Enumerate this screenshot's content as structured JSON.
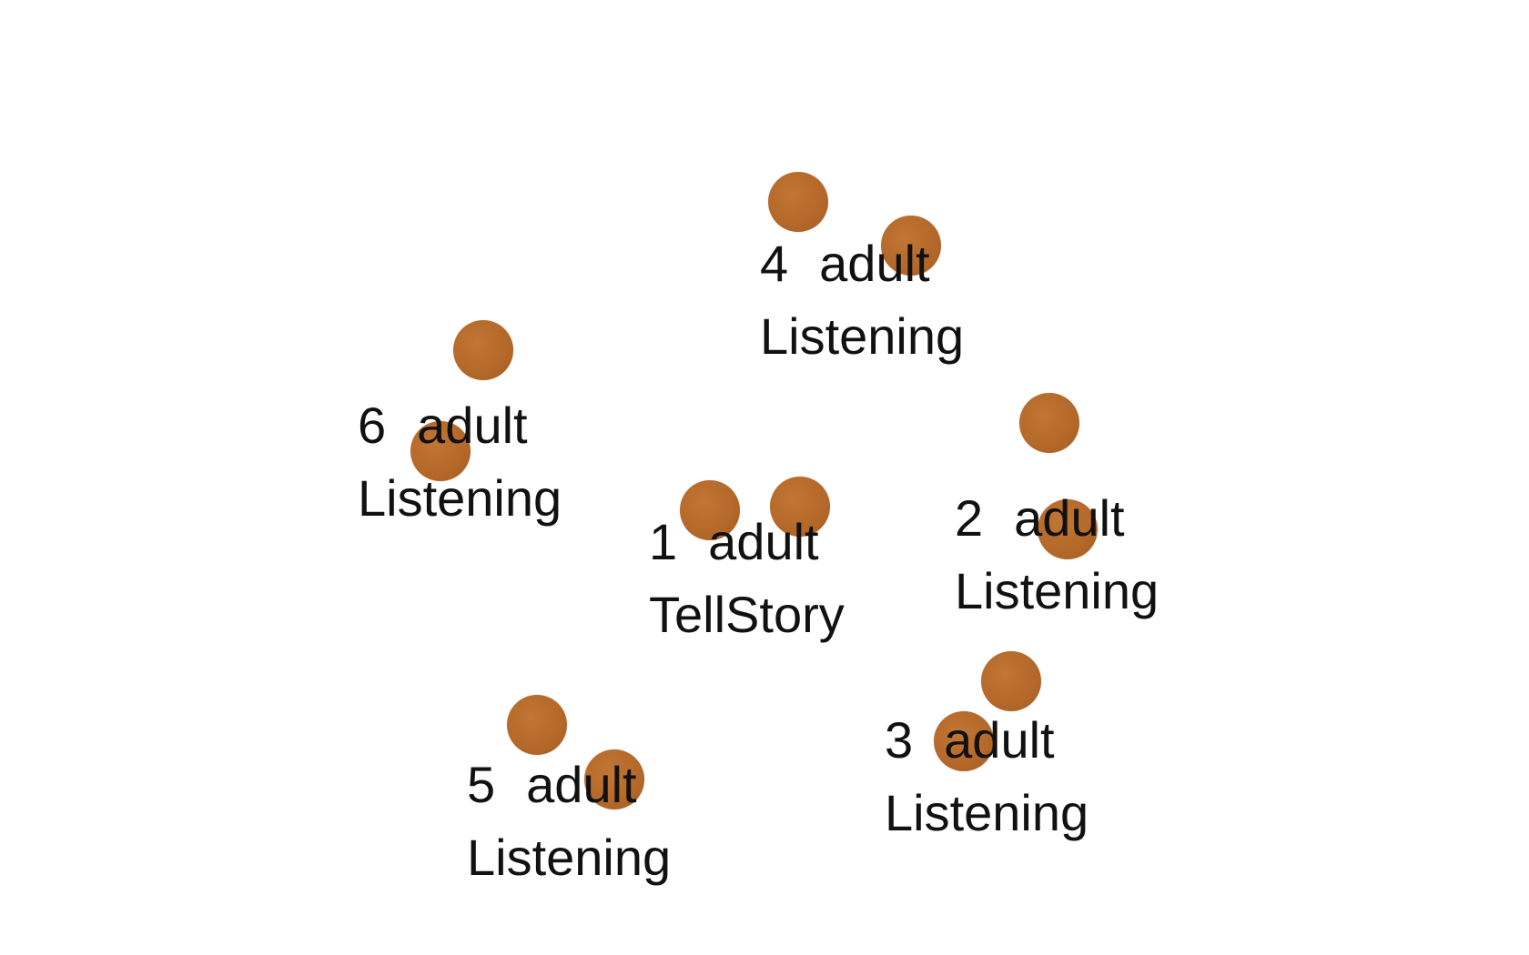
{
  "agents": [
    {
      "id": "1",
      "type": "adult",
      "state": "TellStory"
    },
    {
      "id": "2",
      "type": "adult",
      "state": "Listening"
    },
    {
      "id": "3",
      "type": "adult",
      "state": "Listening"
    },
    {
      "id": "4",
      "type": "adult",
      "state": "Listening"
    },
    {
      "id": "5",
      "type": "adult",
      "state": "Listening"
    },
    {
      "id": "6",
      "type": "adult",
      "state": "Listening"
    }
  ],
  "colors": {
    "agent_fill": "#b5692a",
    "text": "#111111",
    "background": "#ffffff"
  }
}
